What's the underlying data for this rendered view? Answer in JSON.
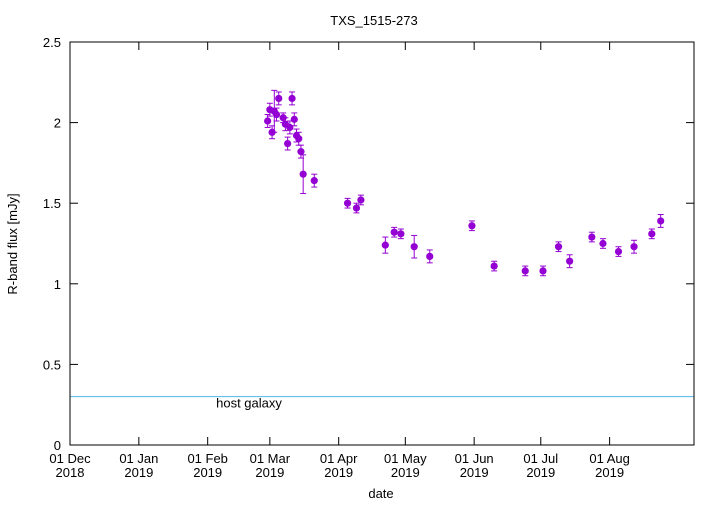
{
  "chart_data": {
    "type": "scatter",
    "title": "TXS_1515-273",
    "xlabel": "date",
    "ylabel": "R-band flux [mJy]",
    "x_range": [
      "2018-12-01",
      "2019-09-08"
    ],
    "ylim": [
      0,
      2.5
    ],
    "yticks": [
      "0",
      "0.5",
      "1",
      "1.5",
      "2",
      "2.5"
    ],
    "xticks": [
      {
        "date": "2018-12-01",
        "line1": "01 Dec",
        "line2": "2018"
      },
      {
        "date": "2019-01-01",
        "line1": "01 Jan",
        "line2": "2019"
      },
      {
        "date": "2019-02-01",
        "line1": "01 Feb",
        "line2": "2019"
      },
      {
        "date": "2019-03-01",
        "line1": "01 Mar",
        "line2": "2019"
      },
      {
        "date": "2019-04-01",
        "line1": "01 Apr",
        "line2": "2019"
      },
      {
        "date": "2019-05-01",
        "line1": "01 May",
        "line2": "2019"
      },
      {
        "date": "2019-06-01",
        "line1": "01 Jun",
        "line2": "2019"
      },
      {
        "date": "2019-07-01",
        "line1": "01 Jul",
        "line2": "2019"
      },
      {
        "date": "2019-08-01",
        "line1": "01 Aug",
        "line2": "2019"
      }
    ],
    "grid": false,
    "colors": {
      "points": "#9400d3",
      "host_line": "#56b4e9"
    },
    "host_galaxy": {
      "label": "host galaxy",
      "value": 0.3
    },
    "series": [
      {
        "points": [
          {
            "x": "2019-02-28",
            "y": 2.01,
            "err": 0.04
          },
          {
            "x": "2019-03-01",
            "y": 2.08,
            "err": 0.04
          },
          {
            "x": "2019-03-02",
            "y": 1.94,
            "err": 0.04
          },
          {
            "x": "2019-03-03",
            "y": 2.07,
            "err": 0.13
          },
          {
            "x": "2019-03-04",
            "y": 2.05,
            "err": 0.04
          },
          {
            "x": "2019-03-05",
            "y": 2.15,
            "err": 0.04
          },
          {
            "x": "2019-03-07",
            "y": 2.03,
            "err": 0.03
          },
          {
            "x": "2019-03-08",
            "y": 1.99,
            "err": 0.04
          },
          {
            "x": "2019-03-09",
            "y": 1.87,
            "err": 0.04
          },
          {
            "x": "2019-03-10",
            "y": 1.97,
            "err": 0.04
          },
          {
            "x": "2019-03-11",
            "y": 2.15,
            "err": 0.04
          },
          {
            "x": "2019-03-12",
            "y": 2.02,
            "err": 0.04
          },
          {
            "x": "2019-03-13",
            "y": 1.92,
            "err": 0.04
          },
          {
            "x": "2019-03-14",
            "y": 1.9,
            "err": 0.04
          },
          {
            "x": "2019-03-15",
            "y": 1.82,
            "err": 0.04
          },
          {
            "x": "2019-03-16",
            "y": 1.68,
            "err": 0.12
          },
          {
            "x": "2019-03-21",
            "y": 1.64,
            "err": 0.04
          },
          {
            "x": "2019-04-05",
            "y": 1.5,
            "err": 0.03
          },
          {
            "x": "2019-04-09",
            "y": 1.47,
            "err": 0.03
          },
          {
            "x": "2019-04-11",
            "y": 1.52,
            "err": 0.03
          },
          {
            "x": "2019-04-22",
            "y": 1.24,
            "err": 0.05
          },
          {
            "x": "2019-04-26",
            "y": 1.32,
            "err": 0.03
          },
          {
            "x": "2019-04-29",
            "y": 1.31,
            "err": 0.03
          },
          {
            "x": "2019-05-05",
            "y": 1.23,
            "err": 0.07
          },
          {
            "x": "2019-05-12",
            "y": 1.17,
            "err": 0.04
          },
          {
            "x": "2019-05-31",
            "y": 1.36,
            "err": 0.03
          },
          {
            "x": "2019-06-10",
            "y": 1.11,
            "err": 0.03
          },
          {
            "x": "2019-06-24",
            "y": 1.08,
            "err": 0.03
          },
          {
            "x": "2019-07-02",
            "y": 1.08,
            "err": 0.03
          },
          {
            "x": "2019-07-09",
            "y": 1.23,
            "err": 0.03
          },
          {
            "x": "2019-07-14",
            "y": 1.14,
            "err": 0.04
          },
          {
            "x": "2019-07-24",
            "y": 1.29,
            "err": 0.03
          },
          {
            "x": "2019-07-29",
            "y": 1.25,
            "err": 0.03
          },
          {
            "x": "2019-08-05",
            "y": 1.2,
            "err": 0.03
          },
          {
            "x": "2019-08-12",
            "y": 1.23,
            "err": 0.04
          },
          {
            "x": "2019-08-20",
            "y": 1.31,
            "err": 0.03
          },
          {
            "x": "2019-08-24",
            "y": 1.39,
            "err": 0.04
          }
        ]
      }
    ]
  }
}
